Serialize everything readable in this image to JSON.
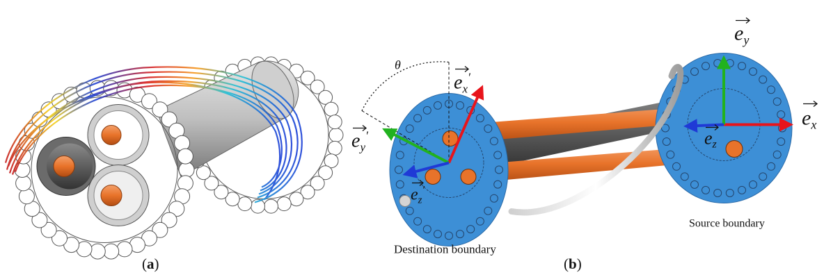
{
  "panels": [
    {
      "id": "a",
      "caption_open": "(",
      "caption_letter": "a",
      "caption_close": ")"
    },
    {
      "id": "b",
      "caption_open": "(",
      "caption_letter": "b",
      "caption_close": ")"
    }
  ],
  "panel_b": {
    "angle_label": "θ",
    "vectors_destination": [
      {
        "name": "ex-prime",
        "base": "e",
        "sub": "x",
        "prime": "′",
        "color": "#e8141b"
      },
      {
        "name": "ey-prime",
        "base": "e",
        "sub": "y",
        "prime": "′",
        "color": "#22b21f"
      },
      {
        "name": "ez-prime",
        "base": "e",
        "sub": "z",
        "prime": "′",
        "color": "#1f3ad6"
      }
    ],
    "vectors_source": [
      {
        "name": "ex",
        "base": "e",
        "sub": "x",
        "prime": "",
        "color": "#e8141b"
      },
      {
        "name": "ey",
        "base": "e",
        "sub": "y",
        "prime": "",
        "color": "#22b21f"
      },
      {
        "name": "ez",
        "base": "e",
        "sub": "z",
        "prime": "",
        "color": "#1f3ad6"
      }
    ],
    "destination_label": "Destination boundary",
    "source_label": "Source boundary"
  },
  "colors": {
    "disk": "#3d8fd6",
    "core": "#e8732a",
    "armour": "#c9c9c9",
    "sheath": "#8f8f8f"
  }
}
